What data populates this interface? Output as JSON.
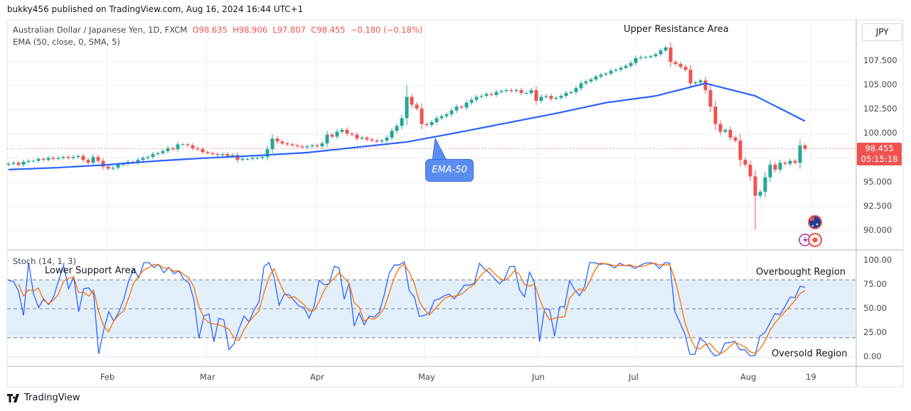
{
  "header": {
    "published": "bukky456 published on TradingView.com, Aug 16, 2024 16:44 UTC+1",
    "symbol": "Australian Dollar / Japanese Yen, 1D, FXCM",
    "open": "O98.635",
    "high": "H98.906",
    "low": "L97.807",
    "close": "C98.455",
    "change": "−0.180 (−0.18%)",
    "ema_legend": "EMA (50, close, 0, SMA, 5)",
    "stoch_legend": "Stoch (14, 1, 3)"
  },
  "currency_button": "JPY",
  "last_price": {
    "value": "98.455",
    "countdown": "05:15:18"
  },
  "annotations": {
    "upper": "Upper Resistance Area",
    "ema": "EMA-50",
    "lower": "Lower Support Area",
    "overbought": "Overbought Region",
    "oversold": "Oversold Region"
  },
  "footer": {
    "brand": "TradingView"
  },
  "colors": {
    "up": "#26a69a",
    "down": "#ef5350",
    "ema": "#2962ff",
    "k": "#2962ff",
    "d": "#ff6d00",
    "band": "#e3f0fc"
  },
  "icons": [
    "australia-flag-icon",
    "lightning-icon",
    "record-dot-icon",
    "tradingview-logo-icon"
  ],
  "chart_data": {
    "type": "candlestick",
    "price_axis": {
      "ticks": [
        "107.500",
        "105.000",
        "102.500",
        "100.000",
        "95.000",
        "92.500",
        "90.000"
      ],
      "ylim": [
        89.2,
        110.5
      ]
    },
    "time_axis": {
      "ticks": [
        "Feb",
        "Mar",
        "Apr",
        "May",
        "Jun",
        "Jul",
        "Aug",
        "19"
      ]
    },
    "close": [
      96.9,
      97.0,
      96.8,
      97.1,
      97.2,
      97.2,
      97.4,
      97.3,
      97.5,
      97.4,
      97.5,
      97.6,
      97.5,
      97.6,
      97.7,
      97.3,
      97.0,
      97.6,
      97.2,
      96.6,
      96.4,
      96.5,
      96.8,
      96.9,
      97.1,
      97.0,
      97.3,
      97.5,
      97.6,
      97.9,
      98.0,
      98.2,
      98.5,
      98.4,
      98.9,
      98.9,
      98.8,
      98.5,
      98.4,
      98.1,
      98.0,
      97.9,
      97.8,
      97.9,
      97.7,
      97.8,
      97.3,
      97.4,
      97.4,
      97.5,
      97.5,
      97.6,
      98.4,
      99.5,
      99.2,
      99.0,
      98.9,
      98.8,
      98.7,
      98.6,
      98.7,
      98.8,
      98.7,
      99.0,
      99.9,
      99.7,
      100.2,
      100.4,
      100.0,
      99.9,
      99.5,
      99.6,
      99.4,
      99.3,
      99.2,
      99.3,
      99.6,
      100.3,
      100.8,
      101.6,
      103.8,
      103.0,
      102.6,
      101.0,
      100.9,
      101.2,
      101.6,
      101.8,
      102.0,
      102.4,
      102.8,
      102.7,
      103.2,
      103.5,
      103.8,
      103.9,
      104.1,
      104.0,
      104.3,
      104.4,
      104.5,
      104.4,
      104.5,
      104.2,
      104.2,
      104.5,
      103.4,
      103.8,
      103.9,
      103.6,
      103.7,
      103.9,
      104.2,
      104.3,
      104.7,
      105.2,
      105.4,
      105.6,
      105.9,
      106.1,
      106.2,
      106.5,
      106.6,
      106.8,
      107.0,
      107.3,
      107.8,
      107.9,
      107.9,
      108.0,
      108.2,
      108.6,
      108.9,
      107.4,
      107.2,
      106.9,
      106.6,
      105.2,
      105.3,
      105.5,
      104.5,
      102.8,
      101.0,
      100.2,
      100.4,
      99.6,
      99.3,
      97.3,
      96.8,
      95.6,
      93.6,
      94.0,
      95.5,
      96.8,
      96.3,
      97.0,
      96.9,
      97.2,
      97.0,
      98.8,
      98.455
    ],
    "extreme_wicks": [
      {
        "candle": 80,
        "high": 105.0
      },
      {
        "candle": 150,
        "low": 90.1
      }
    ],
    "ema_50_every_10_candles": [
      96.3,
      96.5,
      96.8,
      97.2,
      97.5,
      97.75,
      98.05,
      98.6,
      99.15,
      100.1,
      101.1,
      102.1,
      103.2,
      103.9,
      105.2,
      103.9,
      101.3
    ],
    "stoch": {
      "axis_ticks": [
        "100.00",
        "75.00",
        "50.00",
        "25.00",
        "0.00"
      ],
      "bands": [
        80,
        50,
        20
      ],
      "k": [
        79.4,
        78.2,
        68.4,
        43,
        97.8,
        65.2,
        51.3,
        60.3,
        54.4,
        62.2,
        79.4,
        94.6,
        70.8,
        83.1,
        47,
        70.8,
        71.6,
        65.2,
        3.4,
        27.9,
        47,
        37.3,
        46.3,
        59.8,
        79.4,
        91.2,
        81.9,
        97.8,
        97.8,
        92.9,
        95.8,
        87.3,
        92.9,
        86.3,
        89.2,
        80.6,
        77,
        59.8,
        19.3,
        42.6,
        44.6,
        15.7,
        40.2,
        38.4,
        7.8,
        13.7,
        29.2,
        42.6,
        36.5,
        48.7,
        57.4,
        93.6,
        97.8,
        83.1,
        53.7,
        64.7,
        64.7,
        58.6,
        52.5,
        51.3,
        40.2,
        52.5,
        79.4,
        75,
        75.7,
        94.1,
        92.2,
        59.8,
        77,
        32.1,
        45.6,
        33.3,
        42.6,
        41.4,
        46.3,
        64.7,
        86.8,
        95.4,
        95.4,
        98.6,
        68.4,
        62.2,
        42.2,
        43.1,
        45.6,
        58.6,
        60.3,
        63.5,
        65.2,
        60.3,
        67.2,
        74.5,
        74.5,
        76.5,
        97.1,
        91.2,
        87.3,
        81.4,
        75.7,
        80.6,
        93.6,
        94.1,
        69.6,
        62.2,
        88,
        77,
        16.1,
        50,
        49.2,
        21.8,
        52,
        52,
        79.4,
        69.6,
        63.5,
        73.3,
        97.8,
        97.8,
        96.1,
        96.6,
        95.4,
        92.2,
        97.3,
        94.8,
        94.8,
        91.7,
        94.6,
        97.1,
        97.8,
        96.6,
        91.7,
        97.8,
        97.3,
        47.5,
        35.8,
        24.3,
        2.9,
        2.7,
        19.4,
        15.7,
        7.1,
        1,
        2.9,
        14.5,
        15,
        16.4,
        7.6,
        7.6,
        1.5,
        1.5,
        21.8,
        25.5,
        35.3,
        45.1,
        43.8,
        52.4,
        62.2,
        61.5,
        73.3,
        72.1
      ],
      "d_smoothing": 3
    }
  }
}
